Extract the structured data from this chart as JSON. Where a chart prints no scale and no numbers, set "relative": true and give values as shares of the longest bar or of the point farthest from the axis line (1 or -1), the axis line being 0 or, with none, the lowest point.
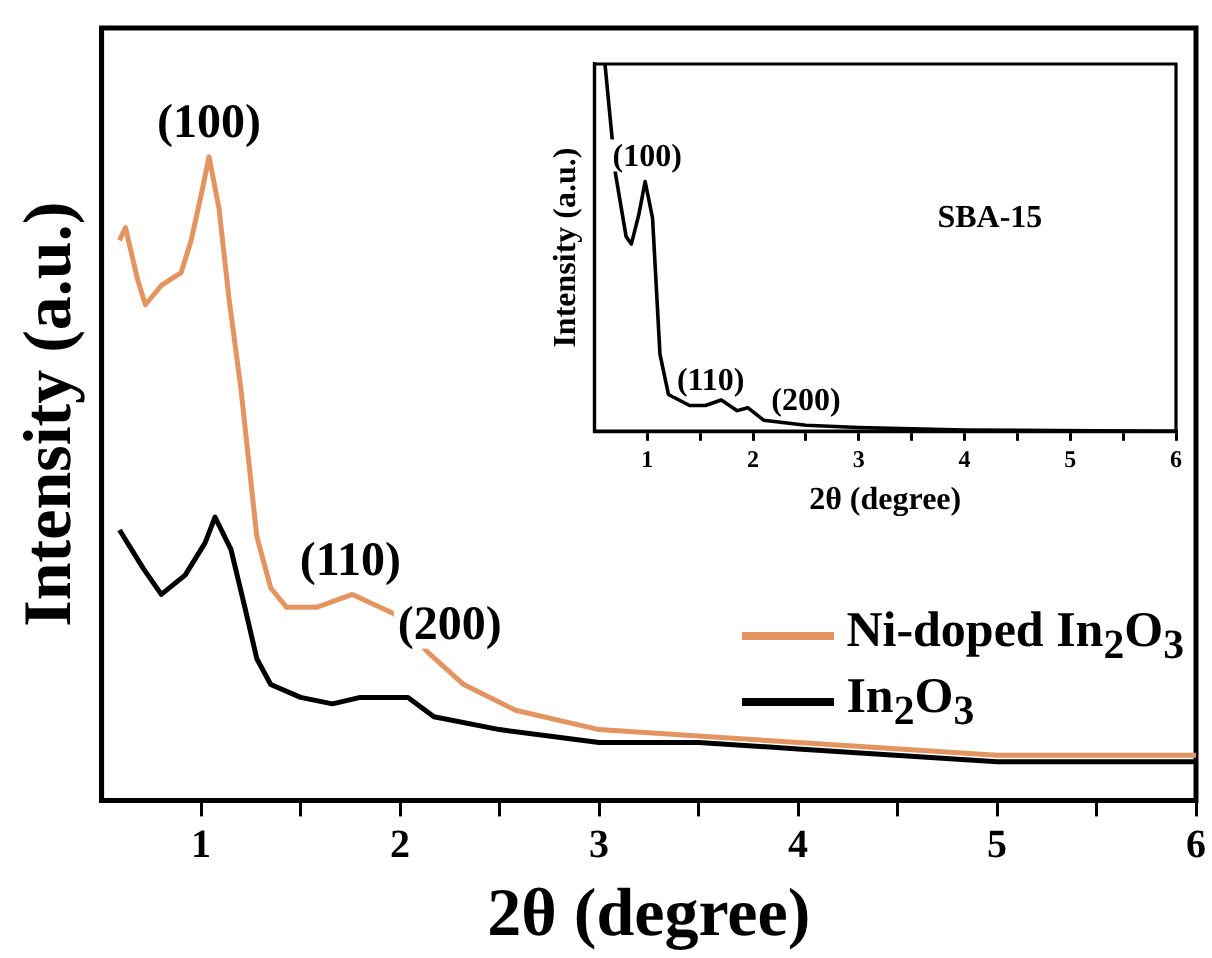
{
  "chart_data": [
    {
      "type": "line",
      "relative": true,
      "xlabel": "2θ (degree)",
      "ylabel": "Intensity (a.u.)",
      "xlim": [
        0.5,
        6
      ],
      "xticks": [
        1,
        {
          "value": 1.5,
          "label": null
        },
        2,
        {
          "value": 2.5,
          "label": null
        },
        3,
        {
          "value": 3.5,
          "label": null
        },
        4,
        {
          "value": 4.5,
          "label": null
        },
        5,
        {
          "value": 5.5,
          "label": null
        },
        6
      ],
      "legend": "right",
      "grid": false,
      "marker": "none",
      "series": [
        {
          "name": "Ni-doped In$_{2}$O$_{3}$",
          "color": "#e39461",
          "x": [
            0.59,
            0.62,
            0.68,
            0.72,
            0.8,
            0.9,
            0.95,
            1.0,
            1.04,
            1.09,
            1.14,
            1.2,
            1.28,
            1.35,
            1.43,
            1.58,
            1.76,
            1.97,
            2.14,
            2.32,
            2.58,
            3.0,
            3.5,
            4.0,
            5.0,
            6.0
          ],
          "values": [
            0.87,
            0.89,
            0.81,
            0.77,
            0.8,
            0.82,
            0.87,
            0.94,
            1.0,
            0.92,
            0.78,
            0.64,
            0.41,
            0.33,
            0.3,
            0.3,
            0.32,
            0.29,
            0.23,
            0.18,
            0.14,
            0.11,
            0.1,
            0.09,
            0.07,
            0.07
          ]
        },
        {
          "name": "In$_{2}$O$_{3}$",
          "color": "#000000",
          "x": [
            0.59,
            0.71,
            0.8,
            0.92,
            1.02,
            1.07,
            1.15,
            1.22,
            1.28,
            1.35,
            1.5,
            1.66,
            1.8,
            2.04,
            2.17,
            2.5,
            3.0,
            3.5,
            4.0,
            5.0,
            6.0
          ],
          "values": [
            0.42,
            0.36,
            0.32,
            0.35,
            0.4,
            0.44,
            0.39,
            0.3,
            0.22,
            0.18,
            0.16,
            0.15,
            0.16,
            0.16,
            0.13,
            0.11,
            0.09,
            0.09,
            0.08,
            0.06,
            0.06
          ]
        }
      ],
      "annotations": [
        {
          "text": "(100)",
          "x": 1.04,
          "y": 1.0
        },
        {
          "text": "(110)",
          "x": 1.75,
          "y": 0.32
        },
        {
          "text": "(200)",
          "x": 2.25,
          "y": 0.22
        }
      ]
    },
    {
      "type": "line",
      "relative": true,
      "xlabel": "2θ (degree)",
      "ylabel": "Intensity (a.u.)",
      "xlim": [
        0.5,
        6
      ],
      "xticks": [
        1,
        {
          "value": 1.5,
          "label": null
        },
        2,
        {
          "value": 2.5,
          "label": null
        },
        3,
        {
          "value": 3.5,
          "label": null
        },
        4,
        {
          "value": 4.5,
          "label": null
        },
        5,
        {
          "value": 5.5,
          "label": null
        },
        6
      ],
      "grid": false,
      "marker": "none",
      "series": [
        {
          "color": "#000000",
          "x": [
            0.6,
            0.7,
            0.8,
            0.85,
            0.92,
            0.98,
            1.05,
            1.12,
            1.2,
            1.4,
            1.55,
            1.7,
            1.85,
            1.95,
            2.1,
            2.5,
            3.0,
            4.0,
            6.0
          ],
          "values": [
            1.0,
            0.7,
            0.53,
            0.51,
            0.59,
            0.68,
            0.58,
            0.21,
            0.1,
            0.07,
            0.07,
            0.085,
            0.056,
            0.064,
            0.03,
            0.016,
            0.01,
            0.003,
            0.0
          ]
        }
      ],
      "annotations": [
        "SBA-15",
        {
          "text": "(100)",
          "x": 1.0,
          "y": 0.68
        },
        {
          "text": "(110)",
          "x": 1.6,
          "y": 0.07
        },
        {
          "text": "(200)",
          "x": 2.5,
          "y": 0.016
        }
      ]
    }
  ]
}
